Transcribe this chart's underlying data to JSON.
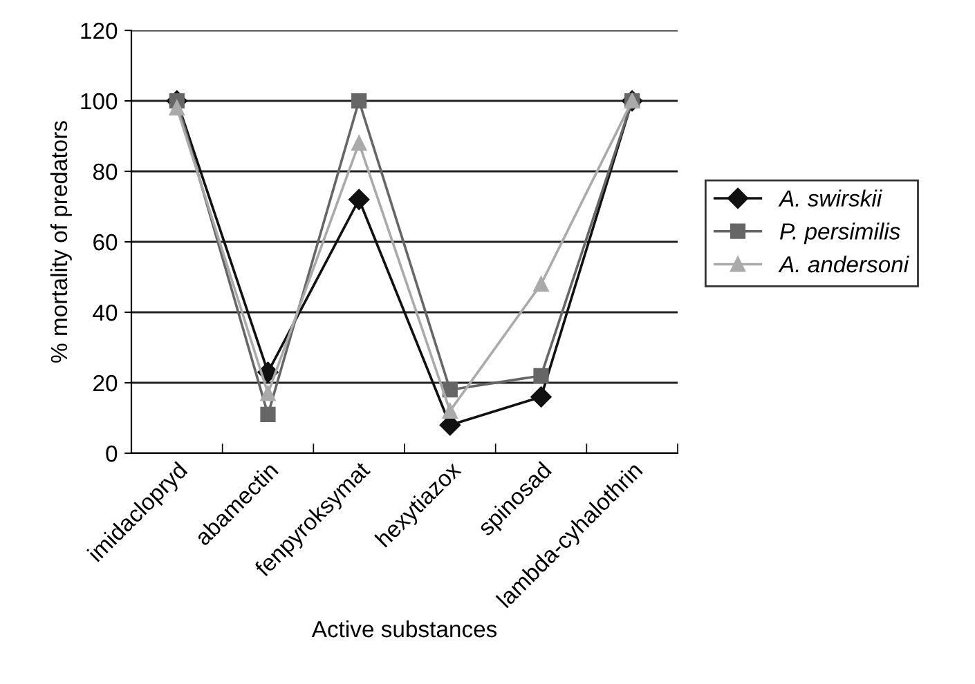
{
  "chart_data": {
    "type": "line",
    "xlabel": "Active substances",
    "ylabel": "% mortality of predators",
    "categories": [
      "imidaclopryd",
      "abamectin",
      "fenpyroksymat",
      "hexytiazox",
      "spinosad",
      "lambda-cyhalothrin"
    ],
    "series": [
      {
        "name": "A. swirskii",
        "color": "#111111",
        "marker": "diamond",
        "values": [
          100,
          23,
          72,
          8,
          16,
          100
        ]
      },
      {
        "name": "P. persimilis",
        "color": "#666666",
        "marker": "square",
        "values": [
          100,
          11,
          100,
          18,
          22,
          100
        ]
      },
      {
        "name": "A. andersoni",
        "color": "#aaaaaa",
        "marker": "triangle",
        "values": [
          98,
          17,
          88,
          12,
          48,
          100
        ]
      }
    ],
    "ylim": [
      0,
      120
    ],
    "yticks": [
      0,
      20,
      40,
      60,
      80,
      100,
      120
    ],
    "grid": "y",
    "legend": "right"
  }
}
